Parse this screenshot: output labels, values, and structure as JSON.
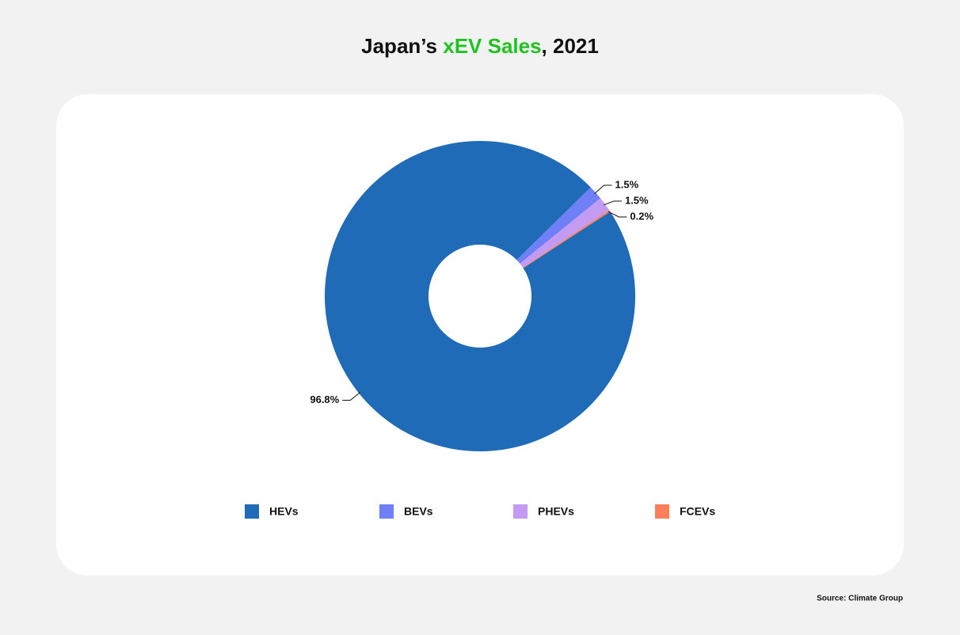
{
  "chart_data": {
    "type": "donut",
    "title_parts": [
      "Japan’s ",
      "xEV Sales",
      ", 2021"
    ],
    "title_highlight_color": "#1fc21f",
    "categories": [
      "HEVs",
      "BEVs",
      "PHEVs",
      "FCEVs"
    ],
    "values": [
      96.8,
      1.5,
      1.5,
      0.2
    ],
    "value_labels": [
      "96.8%",
      "1.5%",
      "1.5%",
      "0.2%"
    ],
    "colors": [
      "#1f6bb8",
      "#6f7ff7",
      "#c39bf2",
      "#fa7f5a"
    ],
    "source": "Source: Climate Group"
  }
}
